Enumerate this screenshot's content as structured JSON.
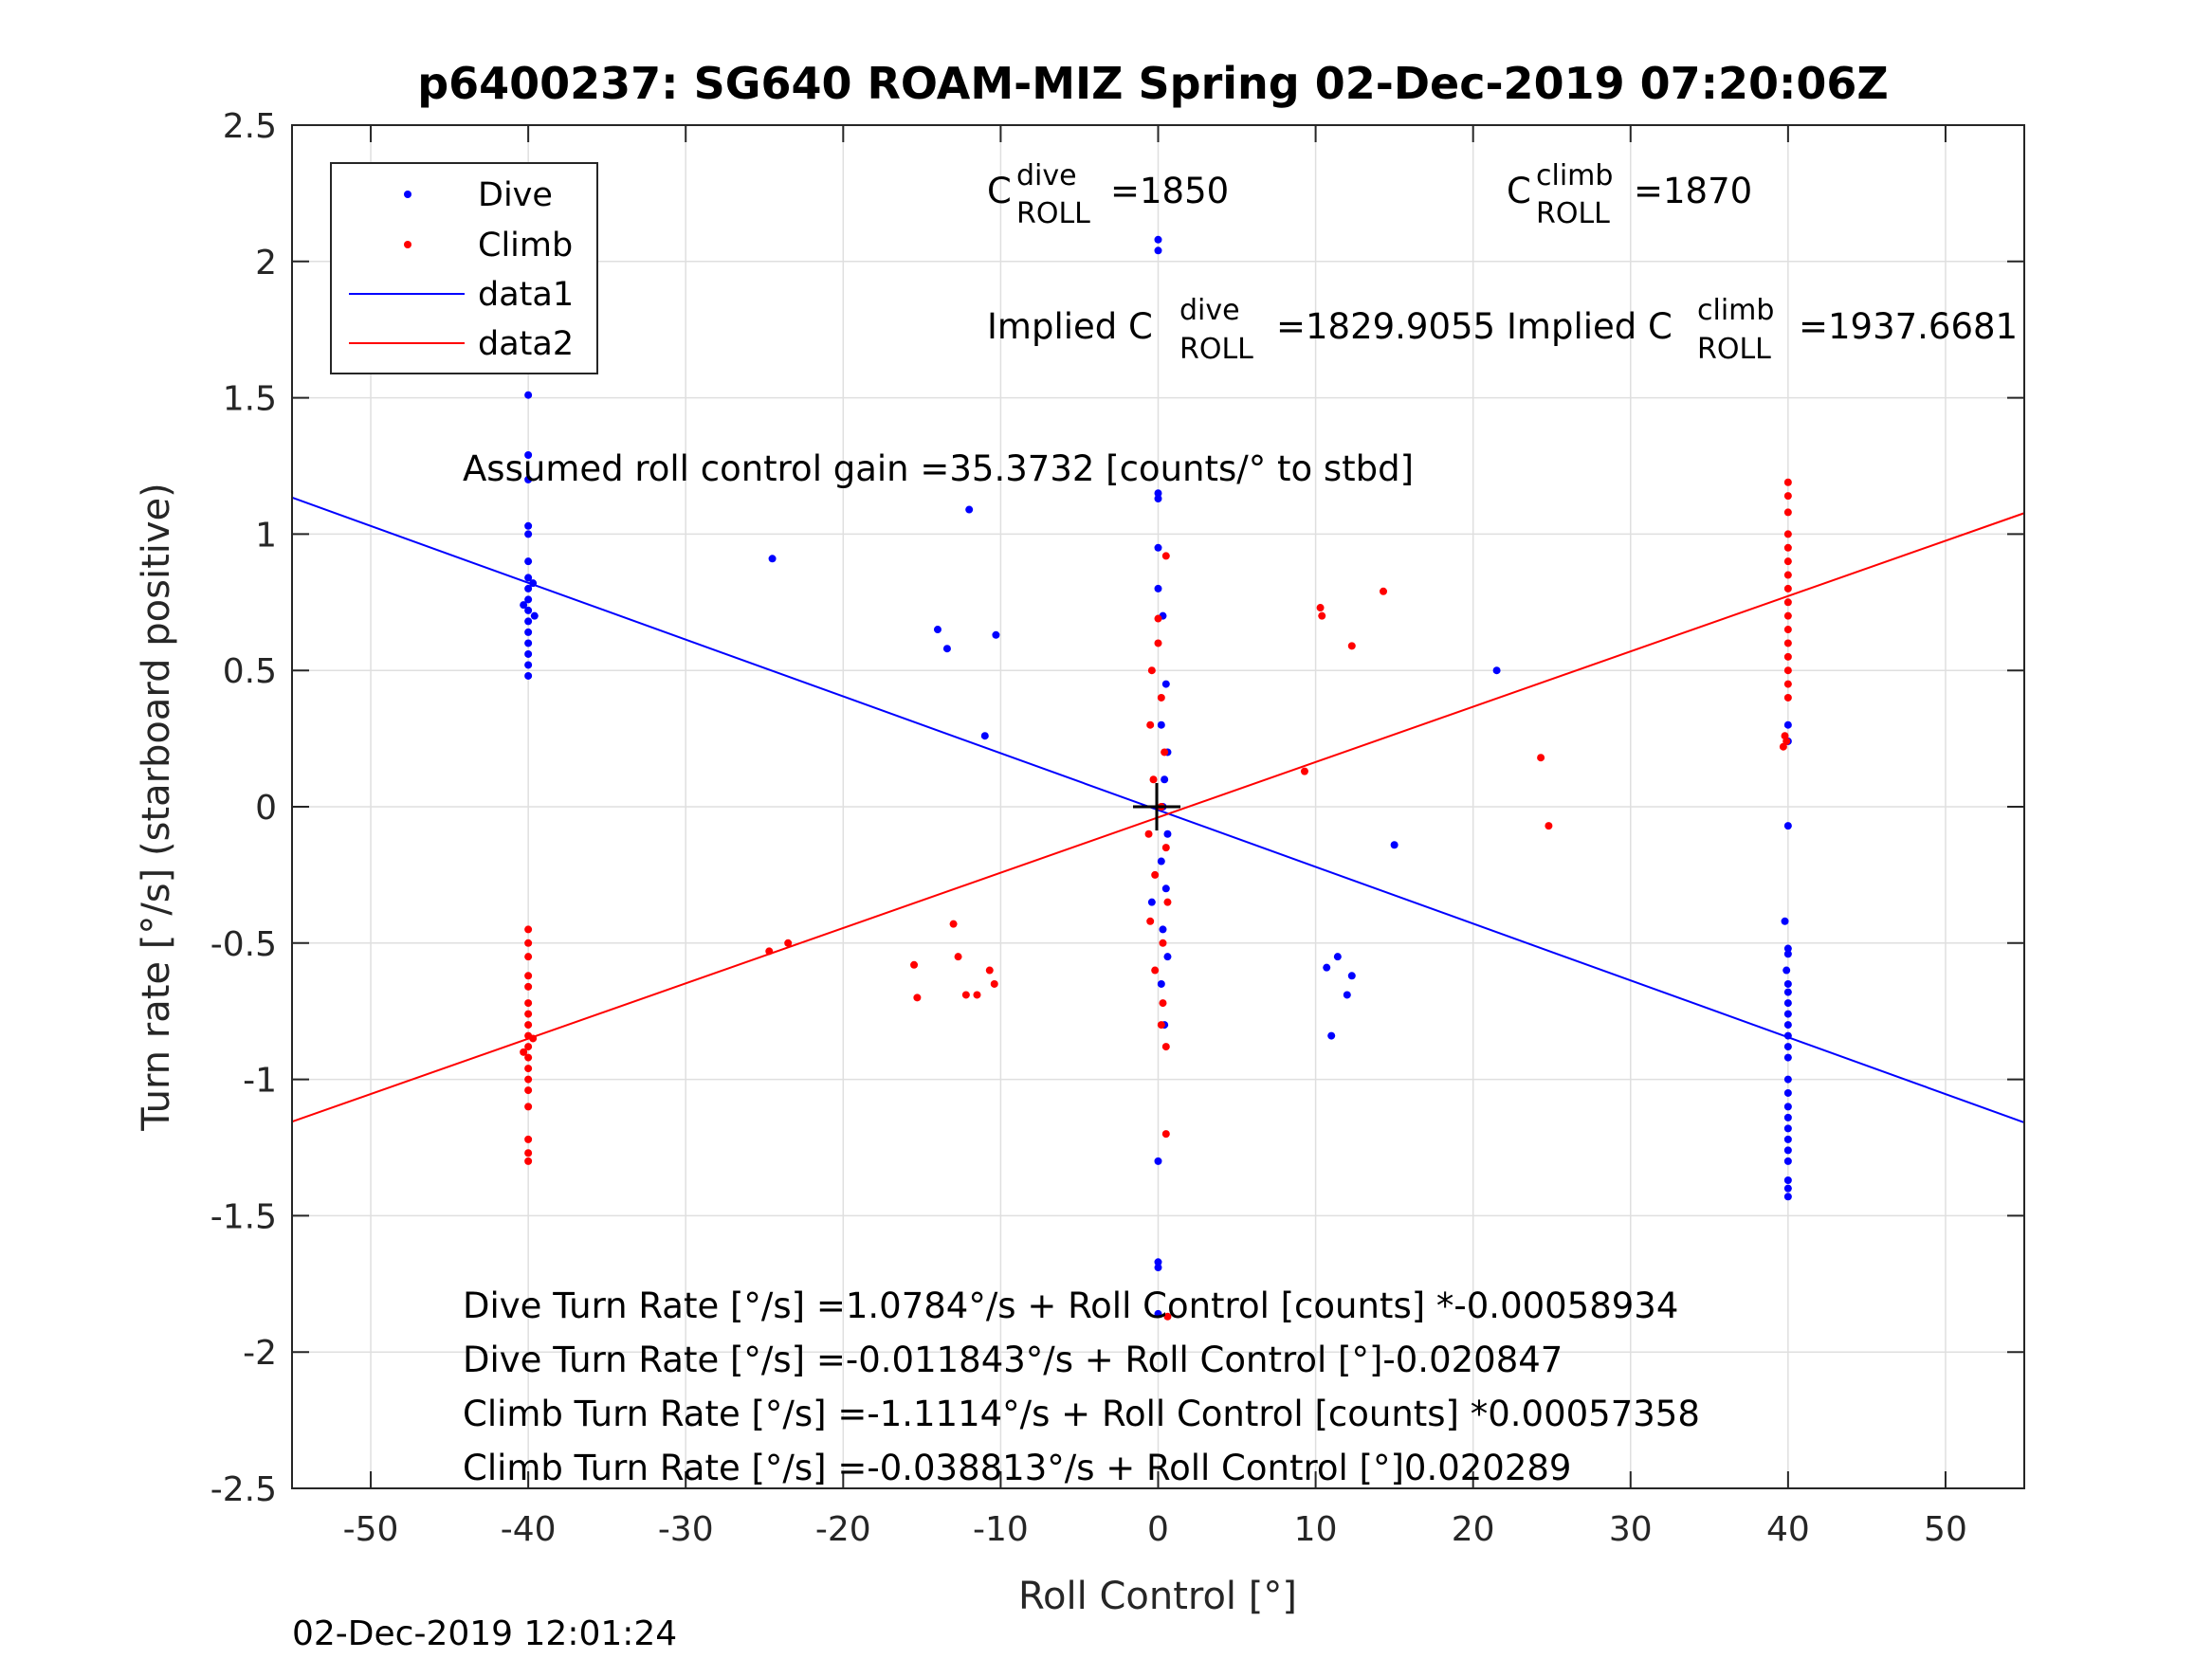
{
  "chart_data": {
    "type": "scatter",
    "title": "p6400237: SG640 ROAM-MIZ Spring 02-Dec-2019 07:20:06Z",
    "xlabel": "Roll Control [°]",
    "ylabel": "Turn rate [°/s] (starboard positive)",
    "xlim": [
      -55,
      55
    ],
    "ylim": [
      -2.5,
      2.5
    ],
    "xticks": [
      -50,
      -40,
      -30,
      -20,
      -10,
      0,
      10,
      20,
      30,
      40,
      50
    ],
    "xtick_labels": [
      "-50",
      "-40",
      "-30",
      "-20",
      "-10",
      "0",
      "10",
      "20",
      "30",
      "40",
      "50"
    ],
    "yticks": [
      -2.5,
      -2,
      -1.5,
      -1,
      -0.5,
      0,
      0.5,
      1,
      1.5,
      2,
      2.5
    ],
    "ytick_labels": [
      "-2.5",
      "-2",
      "-1.5",
      "-1",
      "-0.5",
      "0",
      "0.5",
      "1",
      "1.5",
      "2",
      "2.5"
    ],
    "grid": true,
    "legend_position": "top-left",
    "legend": [
      {
        "label": "Dive",
        "kind": "marker",
        "color": "#0000ff"
      },
      {
        "label": "Climb",
        "kind": "marker",
        "color": "#ff0000"
      },
      {
        "label": "data1",
        "kind": "line",
        "color": "#0000ff"
      },
      {
        "label": "data2",
        "kind": "line",
        "color": "#ff0000"
      }
    ],
    "series": [
      {
        "name": "Dive",
        "kind": "scatter",
        "color": "#0000ff",
        "points": [
          [
            -40,
            1.51
          ],
          [
            -40,
            1.29
          ],
          [
            -40,
            1.2
          ],
          [
            -40,
            1.03
          ],
          [
            -40,
            1.0
          ],
          [
            -40,
            0.9
          ],
          [
            -40,
            0.84
          ],
          [
            -40,
            0.8
          ],
          [
            -40,
            0.76
          ],
          [
            -40,
            0.72
          ],
          [
            -40,
            0.68
          ],
          [
            -40,
            0.64
          ],
          [
            -40,
            0.6
          ],
          [
            -40,
            0.56
          ],
          [
            -40,
            0.52
          ],
          [
            -40,
            0.48
          ],
          [
            -39.7,
            0.82
          ],
          [
            -39.6,
            0.7
          ],
          [
            -40.3,
            0.74
          ],
          [
            -24.5,
            0.91
          ],
          [
            -12,
            1.09
          ],
          [
            -14,
            0.65
          ],
          [
            -13.4,
            0.58
          ],
          [
            -10.3,
            0.63
          ],
          [
            -11,
            0.26
          ],
          [
            0,
            2.08
          ],
          [
            0,
            2.04
          ],
          [
            0,
            1.15
          ],
          [
            0,
            1.13
          ],
          [
            0,
            0.95
          ],
          [
            0,
            0.8
          ],
          [
            0.3,
            0.7
          ],
          [
            0.5,
            0.45
          ],
          [
            0.2,
            0.3
          ],
          [
            0.6,
            0.2
          ],
          [
            0.4,
            0.1
          ],
          [
            0.3,
            0.0
          ],
          [
            0.6,
            -0.1
          ],
          [
            0.2,
            -0.2
          ],
          [
            0.5,
            -0.3
          ],
          [
            -0.4,
            -0.35
          ],
          [
            0.3,
            -0.45
          ],
          [
            0.6,
            -0.55
          ],
          [
            0.2,
            -0.65
          ],
          [
            0.4,
            -0.8
          ],
          [
            0,
            -1.3
          ],
          [
            0,
            -1.67
          ],
          [
            0,
            -1.69
          ],
          [
            0,
            -1.86
          ],
          [
            21.5,
            0.5
          ],
          [
            15,
            -0.14
          ],
          [
            10.7,
            -0.59
          ],
          [
            11.4,
            -0.55
          ],
          [
            12.3,
            -0.62
          ],
          [
            12,
            -0.69
          ],
          [
            11,
            -0.84
          ],
          [
            40,
            0.3
          ],
          [
            40,
            0.24
          ],
          [
            40,
            -0.07
          ],
          [
            39.8,
            -0.42
          ],
          [
            40,
            -0.52
          ],
          [
            40,
            -0.54
          ],
          [
            39.9,
            -0.6
          ],
          [
            40,
            -0.65
          ],
          [
            40,
            -0.68
          ],
          [
            40,
            -0.72
          ],
          [
            40,
            -0.76
          ],
          [
            40,
            -0.8
          ],
          [
            40,
            -0.84
          ],
          [
            40,
            -0.88
          ],
          [
            40,
            -0.92
          ],
          [
            40,
            -1.0
          ],
          [
            40,
            -1.05
          ],
          [
            40,
            -1.1
          ],
          [
            40,
            -1.14
          ],
          [
            40,
            -1.18
          ],
          [
            40,
            -1.22
          ],
          [
            40,
            -1.26
          ],
          [
            40,
            -1.3
          ],
          [
            40,
            -1.37
          ],
          [
            40,
            -1.4
          ],
          [
            40,
            -1.43
          ]
        ]
      },
      {
        "name": "Climb",
        "kind": "scatter",
        "color": "#ff0000",
        "points": [
          [
            -40,
            -0.45
          ],
          [
            -40,
            -0.5
          ],
          [
            -40,
            -0.55
          ],
          [
            -40,
            -0.62
          ],
          [
            -40,
            -0.66
          ],
          [
            -40,
            -0.72
          ],
          [
            -40,
            -0.76
          ],
          [
            -40,
            -0.8
          ],
          [
            -40,
            -0.84
          ],
          [
            -40,
            -0.88
          ],
          [
            -40,
            -0.92
          ],
          [
            -40,
            -0.96
          ],
          [
            -40,
            -1.0
          ],
          [
            -40,
            -1.04
          ],
          [
            -40,
            -1.1
          ],
          [
            -40,
            -1.22
          ],
          [
            -40,
            -1.27
          ],
          [
            -40,
            -1.3
          ],
          [
            -39.7,
            -0.85
          ],
          [
            -40.3,
            -0.9
          ],
          [
            -24.7,
            -0.53
          ],
          [
            -23.5,
            -0.5
          ],
          [
            -15.5,
            -0.58
          ],
          [
            -15.3,
            -0.7
          ],
          [
            -13,
            -0.43
          ],
          [
            -12.7,
            -0.55
          ],
          [
            -12.2,
            -0.69
          ],
          [
            -11.5,
            -0.69
          ],
          [
            -10.7,
            -0.6
          ],
          [
            -10.4,
            -0.65
          ],
          [
            0,
            0.69
          ],
          [
            0,
            0.6
          ],
          [
            -0.4,
            0.5
          ],
          [
            0.2,
            0.4
          ],
          [
            -0.5,
            0.3
          ],
          [
            0.4,
            0.2
          ],
          [
            -0.3,
            0.1
          ],
          [
            0.2,
            0.0
          ],
          [
            -0.6,
            -0.1
          ],
          [
            0.5,
            -0.15
          ],
          [
            -0.2,
            -0.25
          ],
          [
            0.6,
            -0.35
          ],
          [
            -0.5,
            -0.42
          ],
          [
            0.3,
            -0.5
          ],
          [
            -0.2,
            -0.6
          ],
          [
            0.3,
            -0.72
          ],
          [
            0.2,
            -0.8
          ],
          [
            0.5,
            -0.88
          ],
          [
            0.5,
            0.92
          ],
          [
            0.5,
            -1.2
          ],
          [
            0.6,
            -1.87
          ],
          [
            9.3,
            0.13
          ],
          [
            10.3,
            0.73
          ],
          [
            10.4,
            0.7
          ],
          [
            12.3,
            0.59
          ],
          [
            14.3,
            0.79
          ],
          [
            24.3,
            0.18
          ],
          [
            24.8,
            -0.07
          ],
          [
            40,
            1.19
          ],
          [
            40,
            1.14
          ],
          [
            40,
            1.08
          ],
          [
            40,
            1.0
          ],
          [
            40,
            0.95
          ],
          [
            40,
            0.9
          ],
          [
            40,
            0.85
          ],
          [
            40,
            0.8
          ],
          [
            40,
            0.75
          ],
          [
            40,
            0.7
          ],
          [
            40,
            0.65
          ],
          [
            40,
            0.6
          ],
          [
            40,
            0.55
          ],
          [
            40,
            0.5
          ],
          [
            40,
            0.45
          ],
          [
            40,
            0.4
          ],
          [
            39.8,
            0.26
          ],
          [
            39.7,
            0.22
          ],
          [
            39.9,
            0.24
          ]
        ]
      },
      {
        "name": "data1",
        "kind": "line",
        "color": "#0000ff",
        "points": [
          [
            -55,
            1.134
          ],
          [
            55,
            -1.158
          ]
        ]
      },
      {
        "name": "data2",
        "kind": "line",
        "color": "#ff0000",
        "points": [
          [
            -55,
            -1.155
          ],
          [
            55,
            1.077
          ]
        ]
      }
    ]
  },
  "annotations": {
    "c_dive_base": "C",
    "c_dive_sup": "dive",
    "c_dive_sub": "ROLL",
    "c_dive_val": "=1850",
    "c_climb_base": "C",
    "c_climb_sup": "climb",
    "c_climb_sub": "ROLL",
    "c_climb_val": "=1870",
    "implied_dive_base": "Implied C",
    "implied_dive_sup": "dive",
    "implied_dive_sub": "ROLL",
    "implied_dive_val": "=1829.9055",
    "implied_climb_base": "Implied C",
    "implied_climb_sup": "climb",
    "implied_climb_sub": "ROLL",
    "implied_climb_val": "=1937.6681",
    "gain": "Assumed roll control gain =35.3732 [counts/° to stbd]",
    "eq1": "Dive Turn Rate [°/s] =1.0784°/s + Roll Control [counts] *-0.00058934",
    "eq2": "Dive Turn Rate [°/s] =-0.011843°/s + Roll Control [°]-0.020847",
    "eq3": "Climb Turn Rate [°/s] =-1.1114°/s + Roll Control [counts] *0.00057358",
    "eq4": "Climb Turn Rate [°/s] =-0.038813°/s + Roll Control [°]0.020289"
  },
  "timestamp": "02-Dec-2019 12:01:24"
}
